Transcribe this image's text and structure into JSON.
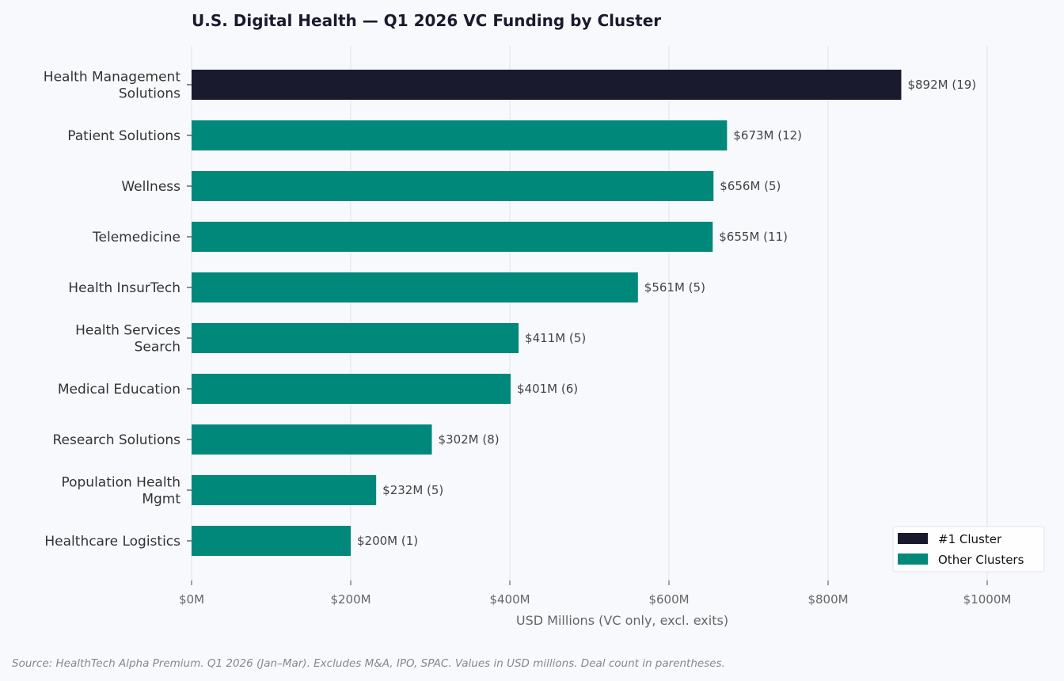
{
  "chart_data": {
    "type": "bar",
    "orientation": "horizontal",
    "title": "U.S. Digital Health — Q1 2026 VC Funding by Cluster",
    "xlabel": "USD Millions (VC only, excl. exits)",
    "ylabel": "",
    "xlim": [
      0,
      1070
    ],
    "xticks": [
      0,
      200,
      400,
      600,
      800,
      1000
    ],
    "xtick_labels": [
      "$0M",
      "$200M",
      "$400M",
      "$600M",
      "$800M",
      "$1000M"
    ],
    "grid": "vertical",
    "categories": [
      [
        "Health Management",
        "Solutions"
      ],
      [
        "Patient Solutions"
      ],
      [
        "Wellness"
      ],
      [
        "Telemedicine"
      ],
      [
        "Health InsurTech"
      ],
      [
        "Health Services",
        "Search"
      ],
      [
        "Medical Education"
      ],
      [
        "Research Solutions"
      ],
      [
        "Population Health",
        "Mgmt"
      ],
      [
        "Healthcare Logistics"
      ]
    ],
    "values": [
      892,
      673,
      656,
      655,
      561,
      411,
      401,
      302,
      232,
      200
    ],
    "deal_counts": [
      19,
      12,
      5,
      11,
      5,
      5,
      6,
      8,
      5,
      1
    ],
    "data_labels": [
      "$892M  (19)",
      "$673M  (12)",
      "$656M  (5)",
      "$655M  (11)",
      "$561M  (5)",
      "$411M  (5)",
      "$401M  (6)",
      "$302M  (8)",
      "$232M  (5)",
      "$200M  (1)"
    ],
    "highlight_index": 0,
    "colors": {
      "highlight": "#1a1a2e",
      "other": "#00897b",
      "background": "#f8f9fd",
      "grid": "#e4e7ef"
    },
    "legend": {
      "placement": "lower-right",
      "entries": [
        {
          "label": "#1 Cluster",
          "color": "#1a1a2e"
        },
        {
          "label": "Other Clusters",
          "color": "#00897b"
        }
      ]
    },
    "source_note": "Source: HealthTech Alpha Premium. Q1 2026 (Jan–Mar). Excludes M&A, IPO, SPAC. Values in USD millions. Deal count in parentheses."
  }
}
